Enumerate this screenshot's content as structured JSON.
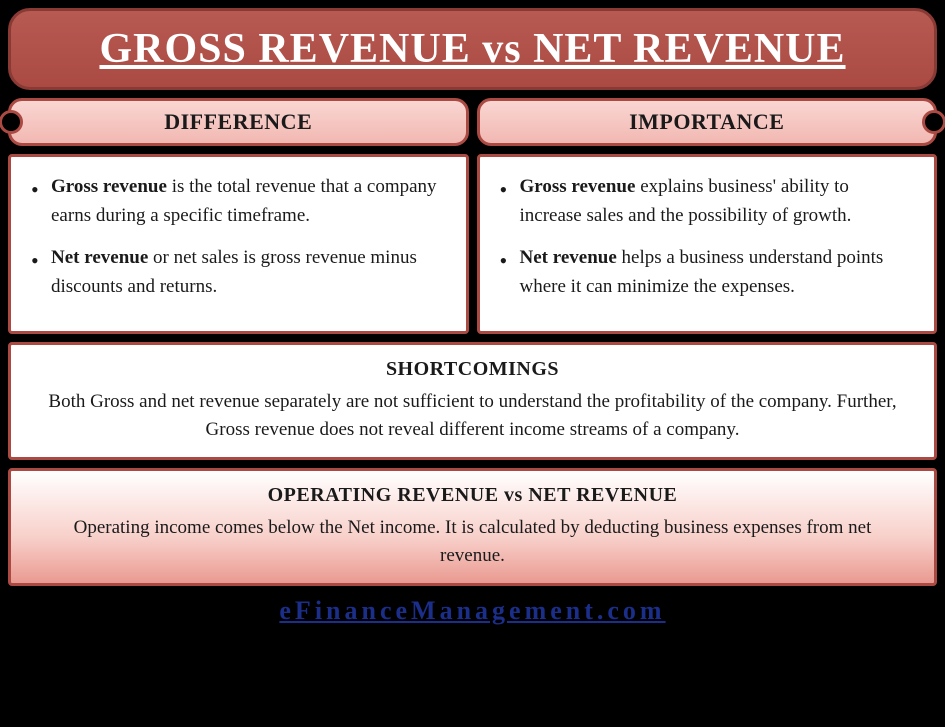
{
  "colors": {
    "page_bg": "#000000",
    "title_bg_start": "#b75a52",
    "title_bg_end": "#aa4a43",
    "title_border": "#8a3a34",
    "title_text": "#ffffff",
    "section_header_bg_start": "#f9d6d2",
    "section_header_bg_end": "#f2b8b2",
    "box_border": "#aa4a43",
    "content_bg": "#ffffff",
    "body_text": "#1a1a1a",
    "grad_mid": "#f8cfc9",
    "grad_end": "#e99a91",
    "footer_link": "#1a2e8a"
  },
  "typography": {
    "font_family": "Garamond, Georgia, Times New Roman, serif",
    "title_fontsize": 42,
    "section_header_fontsize": 22,
    "body_fontsize": 19,
    "heading_fontsize": 20,
    "footer_fontsize": 26
  },
  "title": "GROSS REVENUE vs NET REVENUE",
  "left": {
    "header": "DIFFERENCE",
    "bullets": [
      {
        "bold": "Gross revenue",
        "rest": " is the total revenue that a company earns during a specific timeframe."
      },
      {
        "bold": "Net revenue",
        "rest": " or net sales is gross revenue minus discounts and returns."
      }
    ]
  },
  "right": {
    "header": "IMPORTANCE",
    "bullets": [
      {
        "bold": "Gross revenue",
        "rest": " explains business' ability to increase sales and the possibility of growth."
      },
      {
        "bold": "Net revenue",
        "rest": " helps a business understand points where it can minimize the expenses."
      }
    ]
  },
  "shortcomings": {
    "heading": "SHORTCOMINGS",
    "body": "Both Gross and net revenue separately are not sufficient to understand the profitability of the company. Further, Gross revenue does not reveal different income streams of a company."
  },
  "operating": {
    "heading": "OPERATING REVENUE vs NET REVENUE",
    "body": "Operating income comes below the Net income. It is calculated by deducting business expenses from net revenue."
  },
  "footer": {
    "text": "eFinanceManagement.com"
  }
}
